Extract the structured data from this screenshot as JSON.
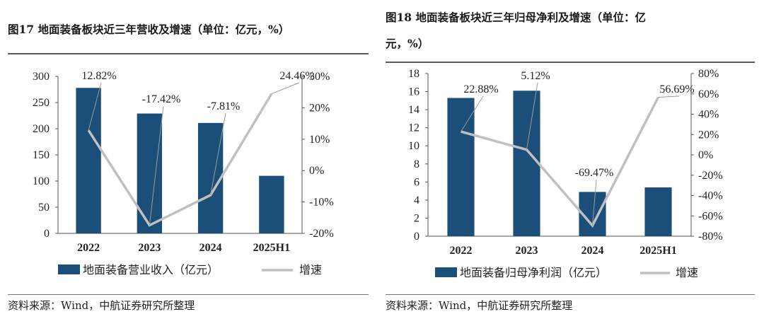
{
  "palette": {
    "bar": "#1b4e78",
    "line": "#c0c0c0",
    "axis": "#555555"
  },
  "chart_data": [
    {
      "type": "bar",
      "title": "图17  地面装备板块近三年营收及增速（单位：亿元，%）",
      "categories": [
        "2022",
        "2023",
        "2024",
        "2025H1"
      ],
      "ylim": [
        0,
        300
      ],
      "yticks": [
        "0",
        "50",
        "100",
        "150",
        "200",
        "250",
        "300"
      ],
      "y2lim": [
        -20,
        30
      ],
      "y2ticks": [
        "-20%",
        "-10%",
        "0%",
        "10%",
        "20%",
        "30%"
      ],
      "grid": false,
      "legend_position": "bottom",
      "series": [
        {
          "name": "地面装备营业收入（亿元）",
          "type": "bar",
          "axis": "left",
          "values": [
            278,
            229,
            211,
            110
          ]
        },
        {
          "name": "增速",
          "type": "line",
          "axis": "right",
          "values": [
            12.82,
            -17.42,
            -7.81,
            24.46
          ],
          "labels": [
            "12.82%",
            "-17.42%",
            "-7.81%",
            "24.46%"
          ]
        }
      ],
      "source": "资料来源：Wind，中航证券研究所整理"
    },
    {
      "type": "bar",
      "title": "图18  地面装备板块近三年归母净利及增速（单位：亿",
      "title_line2": "元，%）",
      "categories": [
        "2022",
        "2023",
        "2024",
        "2025H1"
      ],
      "ylim": [
        0,
        18
      ],
      "yticks": [
        "0",
        "2",
        "4",
        "6",
        "8",
        "10",
        "12",
        "14",
        "16",
        "18"
      ],
      "y2lim": [
        -80,
        80
      ],
      "y2ticks": [
        "-80%",
        "-60%",
        "-40%",
        "-20%",
        "0%",
        "20%",
        "40%",
        "60%",
        "80%"
      ],
      "grid": false,
      "legend_position": "bottom",
      "series": [
        {
          "name": "地面装备归母净利润（亿元）",
          "type": "bar",
          "axis": "left",
          "values": [
            15.3,
            16.1,
            4.9,
            5.4
          ]
        },
        {
          "name": "增速",
          "type": "line",
          "axis": "right",
          "values": [
            22.88,
            5.12,
            -69.47,
            56.69
          ],
          "labels": [
            "22.88%",
            "5.12%",
            "-69.47%",
            "56.69%"
          ]
        }
      ],
      "source": "资料来源：Wind，中航证券研究所整理"
    }
  ]
}
